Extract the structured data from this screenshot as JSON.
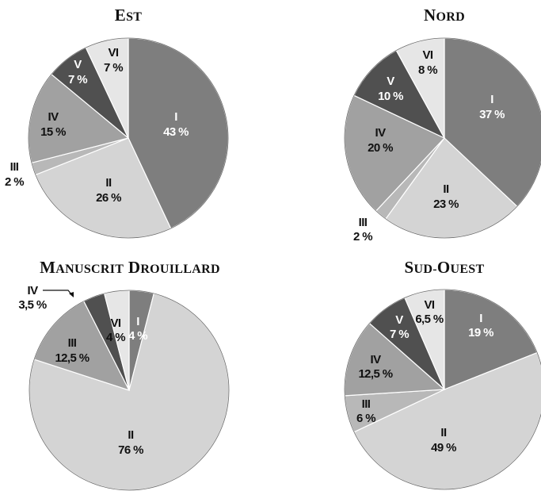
{
  "chart_data": [
    {
      "type": "pie",
      "title": "Est",
      "slices": [
        {
          "category": "I",
          "value": 43,
          "label": "43 %",
          "color": "#7e7e7e",
          "text_color": "#ffffff"
        },
        {
          "category": "II",
          "value": 26,
          "label": "26 %",
          "color": "#d4d4d4",
          "text_color": "#111111"
        },
        {
          "category": "III",
          "value": 2,
          "label": "2 %",
          "color": "#b8b8b8",
          "text_color": "#111111"
        },
        {
          "category": "IV",
          "value": 15,
          "label": "15 %",
          "color": "#a1a1a1",
          "text_color": "#111111"
        },
        {
          "category": "V",
          "value": 7,
          "label": "7 %",
          "color": "#505050",
          "text_color": "#ffffff"
        },
        {
          "category": "VI",
          "value": 7,
          "label": "7 %",
          "color": "#e6e6e6",
          "text_color": "#111111"
        }
      ]
    },
    {
      "type": "pie",
      "title": "Nord",
      "slices": [
        {
          "category": "I",
          "value": 37,
          "label": "37 %",
          "color": "#7e7e7e",
          "text_color": "#ffffff"
        },
        {
          "category": "II",
          "value": 23,
          "label": "23 %",
          "color": "#d4d4d4",
          "text_color": "#111111"
        },
        {
          "category": "III",
          "value": 2,
          "label": "2 %",
          "color": "#b8b8b8",
          "text_color": "#111111"
        },
        {
          "category": "IV",
          "value": 20,
          "label": "20 %",
          "color": "#a1a1a1",
          "text_color": "#111111"
        },
        {
          "category": "V",
          "value": 10,
          "label": "10 %",
          "color": "#505050",
          "text_color": "#ffffff"
        },
        {
          "category": "VI",
          "value": 8,
          "label": "8 %",
          "color": "#e6e6e6",
          "text_color": "#111111"
        }
      ]
    },
    {
      "type": "pie",
      "title": "Manuscrit Drouillard",
      "slices": [
        {
          "category": "I",
          "value": 4,
          "label": "4 %",
          "color": "#7e7e7e",
          "text_color": "#ffffff"
        },
        {
          "category": "II",
          "value": 76,
          "label": "76 %",
          "color": "#d4d4d4",
          "text_color": "#111111"
        },
        {
          "category": "III",
          "value": 12.5,
          "label": "12,5 %",
          "color": "#a1a1a1",
          "text_color": "#111111"
        },
        {
          "category": "IV",
          "value": 3.5,
          "label": "3,5 %",
          "color": "#505050",
          "text_color": "#111111"
        },
        {
          "category": "VI",
          "value": 4,
          "label": "4 %",
          "color": "#e6e6e6",
          "text_color": "#111111"
        }
      ]
    },
    {
      "type": "pie",
      "title": "Sud-Ouest",
      "slices": [
        {
          "category": "I",
          "value": 19,
          "label": "19 %",
          "color": "#7e7e7e",
          "text_color": "#ffffff"
        },
        {
          "category": "II",
          "value": 49,
          "label": "49 %",
          "color": "#d4d4d4",
          "text_color": "#111111"
        },
        {
          "category": "III",
          "value": 6,
          "label": "6 %",
          "color": "#b8b8b8",
          "text_color": "#111111"
        },
        {
          "category": "IV",
          "value": 12.5,
          "label": "12,5 %",
          "color": "#a1a1a1",
          "text_color": "#111111"
        },
        {
          "category": "V",
          "value": 7,
          "label": "7 %",
          "color": "#505050",
          "text_color": "#ffffff"
        },
        {
          "category": "VI",
          "value": 6.5,
          "label": "6,5 %",
          "color": "#e6e6e6",
          "text_color": "#111111"
        }
      ]
    }
  ]
}
